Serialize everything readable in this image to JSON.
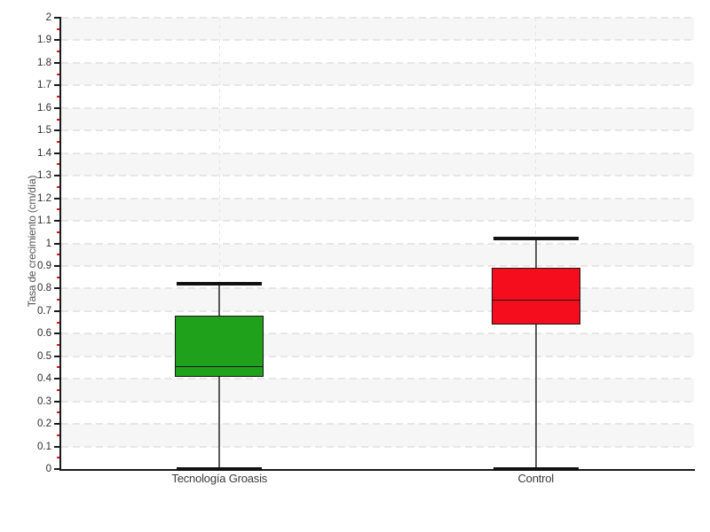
{
  "chart_data": {
    "type": "boxplot",
    "title": "",
    "xlabel": "",
    "ylabel": "Tasa de crecimiento (cm/día)",
    "ylim": [
      0,
      2
    ],
    "ytick_step": 0.1,
    "yminor_step": 0.05,
    "grid": {
      "horizontal": "dashed at every 0.1",
      "vertical": "dashed at category centers",
      "bands": "alternating light-gray horizontal bands every 0.1"
    },
    "legend": "none",
    "categories": [
      "Tecnología Groasis",
      "Control"
    ],
    "series": [
      {
        "name": "Tecnología Groasis",
        "whisker_low": 0,
        "q1": 0.41,
        "median": 0.455,
        "q3": 0.68,
        "whisker_high": 0.82,
        "fill_color": "#1fa11c"
      },
      {
        "name": "Control",
        "whisker_low": 0,
        "q1": 0.64,
        "median": 0.75,
        "q3": 0.89,
        "whisker_high": 1.02,
        "fill_color": "#f50d1e"
      }
    ]
  },
  "colors": {
    "band_gray": "#f6f6f6",
    "grid_dash": "#e6e6e6",
    "vertical_dash": "#e4e4e4",
    "axis": "#1a1a1a",
    "major_tick": "#1a1a1a",
    "minor_tick": "#ee1111",
    "whisker_line": "#5a5a5a",
    "whisker_cap": "#111111",
    "box_border": "#161616",
    "median_line": "#161616",
    "tick_label": "#2e2e2e",
    "category_label": "#3a3a3a",
    "axis_title": "#555555"
  }
}
